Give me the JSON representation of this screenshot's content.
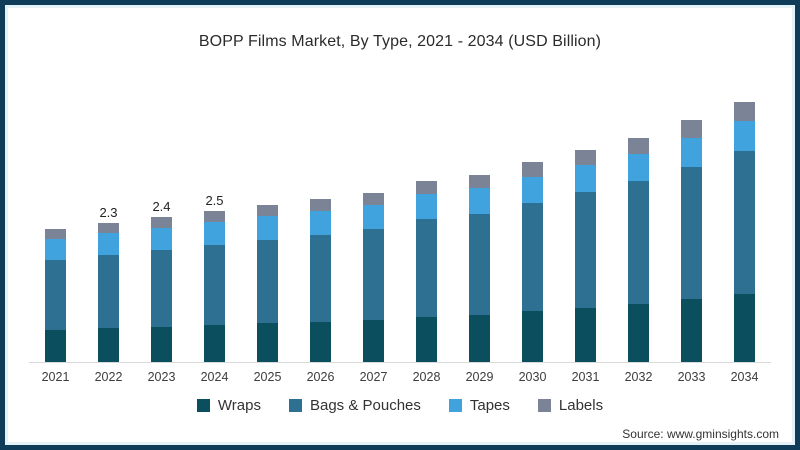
{
  "frame": {
    "border_color": "#0f3c59",
    "inner_edge_color": "#e6f2fa",
    "background": "#ffffff"
  },
  "header": {
    "title": "BOPP Films Market, By Type, 2021 - 2034 (USD Billion)"
  },
  "footer": {
    "source": "Source: www.gminsights.com"
  },
  "chart_data": {
    "type": "bar",
    "stacked": true,
    "title": "BOPP Films Market, By Type, 2021 - 2034 (USD Billion)",
    "unit": "USD Billion",
    "categories": [
      "2021",
      "2022",
      "2023",
      "2024",
      "2025",
      "2026",
      "2027",
      "2028",
      "2029",
      "2030",
      "2031",
      "2032",
      "2033",
      "2034"
    ],
    "series": [
      {
        "name": "Wraps",
        "color": "#0b4f5f",
        "values": [
          0.53,
          0.56,
          0.58,
          0.61,
          0.64,
          0.66,
          0.7,
          0.75,
          0.78,
          0.84,
          0.9,
          0.96,
          1.04,
          1.12
        ]
      },
      {
        "name": "Bags & Pouches",
        "color": "#2e7091",
        "values": [
          1.16,
          1.21,
          1.27,
          1.33,
          1.38,
          1.44,
          1.5,
          1.61,
          1.67,
          1.79,
          1.91,
          2.03,
          2.19,
          2.36
        ]
      },
      {
        "name": "Tapes",
        "color": "#41a3dd",
        "values": [
          0.35,
          0.36,
          0.37,
          0.38,
          0.39,
          0.4,
          0.4,
          0.42,
          0.42,
          0.43,
          0.44,
          0.45,
          0.48,
          0.51
        ]
      },
      {
        "name": "Labels",
        "color": "#7a8496",
        "values": [
          0.16,
          0.17,
          0.18,
          0.18,
          0.19,
          0.2,
          0.2,
          0.22,
          0.23,
          0.24,
          0.25,
          0.26,
          0.29,
          0.31
        ]
      }
    ],
    "totals": [
      2.2,
      2.3,
      2.4,
      2.5,
      2.6,
      2.7,
      2.8,
      3.0,
      3.1,
      3.3,
      3.5,
      3.7,
      4.0,
      4.3
    ],
    "bar_labels": [
      "",
      "2.3",
      "2.4",
      "2.5",
      "",
      "",
      "",
      "",
      "",
      "",
      "",
      "",
      "",
      ""
    ],
    "ylim": [
      0,
      4.5
    ],
    "gridlines": false,
    "y_axis_shown": false,
    "legend_position": "bottom",
    "axis_line_color": "#d9d9d9"
  }
}
